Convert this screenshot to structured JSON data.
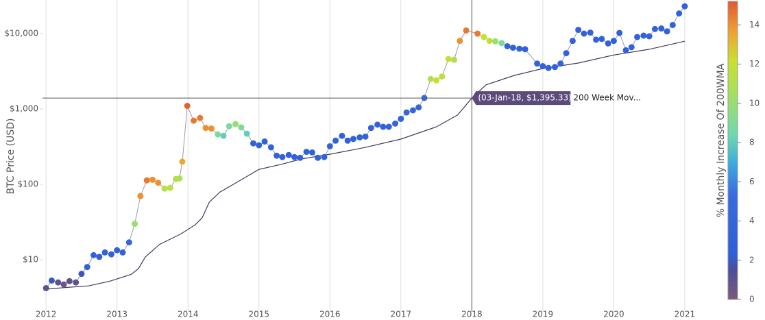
{
  "chart_data": {
    "type": "scatter",
    "y_label": "BTC Price (USD)",
    "colorbar_title": "% Monthly Increase Of 200WMA",
    "log_y": true,
    "grid": "x",
    "xlim": [
      2011.95,
      2021.3
    ],
    "xticks": [
      2012,
      2013,
      2014,
      2015,
      2016,
      2017,
      2018,
      2019,
      2020,
      2021
    ],
    "ylim": [
      2.04,
      27900
    ],
    "yticks": [
      {
        "value": 10,
        "label": "$10"
      },
      {
        "value": 100,
        "label": "$100"
      },
      {
        "value": 1000,
        "label": "$1,000"
      },
      {
        "value": 10000,
        "label": "$10,000"
      }
    ],
    "clim": [
      0,
      15.2
    ],
    "cticks": [
      0,
      2,
      4,
      6,
      8,
      10,
      12,
      14
    ],
    "colorscale": [
      [
        0,
        "#7a5a7a"
      ],
      [
        0.1,
        "#4a4f9a"
      ],
      [
        0.15,
        "#2f5fd8"
      ],
      [
        0.35,
        "#3a6ae0"
      ],
      [
        0.45,
        "#38a8e0"
      ],
      [
        0.55,
        "#6ed8b0"
      ],
      [
        0.7,
        "#a8e05a"
      ],
      [
        0.8,
        "#c8e030"
      ],
      [
        0.9,
        "#f0a030"
      ],
      [
        1,
        "#e05a30"
      ]
    ],
    "price_color": "#9a9aaa",
    "line_color": "#3e3a5e",
    "scatter": {
      "x": [
        2012.0,
        2012.08,
        2012.17,
        2012.25,
        2012.33,
        2012.42,
        2012.5,
        2012.58,
        2012.67,
        2012.75,
        2012.83,
        2012.92,
        2013.0,
        2013.08,
        2013.17,
        2013.25,
        2013.33,
        2013.42,
        2013.5,
        2013.58,
        2013.67,
        2013.75,
        2013.83,
        2013.88,
        2013.92,
        2013.99,
        2014.08,
        2014.17,
        2014.25,
        2014.33,
        2014.42,
        2014.5,
        2014.58,
        2014.67,
        2014.75,
        2014.83,
        2014.92,
        2015.0,
        2015.08,
        2015.17,
        2015.25,
        2015.33,
        2015.42,
        2015.5,
        2015.58,
        2015.67,
        2015.75,
        2015.83,
        2015.92,
        2016.0,
        2016.08,
        2016.17,
        2016.25,
        2016.33,
        2016.42,
        2016.5,
        2016.58,
        2016.67,
        2016.75,
        2016.83,
        2016.92,
        2017.0,
        2017.08,
        2017.17,
        2017.25,
        2017.33,
        2017.42,
        2017.5,
        2017.58,
        2017.67,
        2017.75,
        2017.83,
        2017.92,
        2018.08,
        2018.17,
        2018.25,
        2018.33,
        2018.42,
        2018.5,
        2018.58,
        2018.67,
        2018.75,
        2018.92,
        2019.0,
        2019.08,
        2019.17,
        2019.25,
        2019.33,
        2019.42,
        2019.5,
        2019.58,
        2019.67,
        2019.75,
        2019.83,
        2019.92,
        2020.0,
        2020.08,
        2020.17,
        2020.25,
        2020.33,
        2020.42,
        2020.5,
        2020.58,
        2020.67,
        2020.75,
        2020.83,
        2020.92,
        2021.0
      ],
      "values": [
        4.2,
        5.3,
        5.0,
        4.7,
        5.2,
        5.0,
        6.5,
        8.0,
        11.5,
        10.9,
        12.5,
        11.8,
        13.4,
        12.5,
        17,
        30,
        70,
        113,
        115,
        105,
        88,
        90,
        118,
        120,
        200,
        1100,
        700,
        760,
        560,
        550,
        460,
        440,
        590,
        630,
        570,
        470,
        350,
        330,
        370,
        310,
        240,
        230,
        245,
        230,
        225,
        270,
        265,
        225,
        230,
        320,
        380,
        440,
        380,
        400,
        420,
        430,
        560,
        620,
        580,
        580,
        640,
        740,
        900,
        960,
        1050,
        1400,
        2500,
        2400,
        2700,
        4600,
        4500,
        8000,
        11000,
        10000,
        9000,
        8000,
        7900,
        7500,
        6800,
        6500,
        6300,
        6200,
        4000,
        3700,
        3500,
        3600,
        4000,
        5500,
        8000,
        11200,
        10000,
        10300,
        8300,
        8500,
        7400,
        8000,
        10200,
        6000,
        6600,
        9000,
        9400,
        9200,
        11500,
        11700,
        10700,
        13000,
        18500,
        23000
      ],
      "color_values": [
        1,
        2,
        1,
        0.5,
        1,
        1,
        2,
        3,
        3.5,
        3,
        3,
        3,
        3.5,
        3,
        4,
        10,
        14,
        14.5,
        14,
        14,
        11.5,
        11.5,
        11,
        11,
        13.5,
        15,
        14.5,
        14.5,
        14,
        14,
        9,
        8,
        9,
        10,
        9,
        8,
        3,
        3,
        3,
        3,
        3,
        3,
        3,
        3,
        3,
        3,
        3,
        3,
        3,
        3,
        3,
        3,
        3,
        3,
        3,
        3,
        3.5,
        3.5,
        3.5,
        3.5,
        3.5,
        3.5,
        4,
        4,
        4,
        5,
        11,
        12,
        11.5,
        12,
        11,
        14,
        14.5,
        14.5,
        12,
        12,
        10,
        9,
        3,
        3,
        3,
        3,
        3,
        3,
        3,
        3,
        3,
        3,
        3,
        3,
        3,
        3,
        3,
        3,
        3,
        3,
        3,
        3,
        3,
        3,
        3,
        3,
        3,
        3,
        3,
        3,
        3,
        3
      ]
    },
    "wma": {
      "x": [
        2012.0,
        2012.3,
        2012.6,
        2012.9,
        2013.2,
        2013.3,
        2013.4,
        2013.6,
        2013.9,
        2014.1,
        2014.2,
        2014.3,
        2014.45,
        2014.7,
        2015.0,
        2015.3,
        2015.6,
        2016.0,
        2016.5,
        2017.0,
        2017.5,
        2017.8,
        2018.0,
        2018.2,
        2018.6,
        2019.0,
        2019.5,
        2020.0,
        2020.5,
        2021.0
      ],
      "values": [
        4.07,
        4.3,
        4.5,
        5.2,
        6.4,
        7.6,
        10.9,
        16,
        22,
        29,
        36,
        58,
        79,
        108,
        158,
        183,
        217,
        251,
        309,
        398,
        580,
        832,
        1395,
        2090,
        2790,
        3440,
        4070,
        5200,
        6200,
        7920
      ]
    },
    "hover": {
      "x": 2018.0,
      "value": 1395.33,
      "label": "(03-Jan-18, $1,395.33)",
      "name": "200 Week Mov..."
    }
  }
}
